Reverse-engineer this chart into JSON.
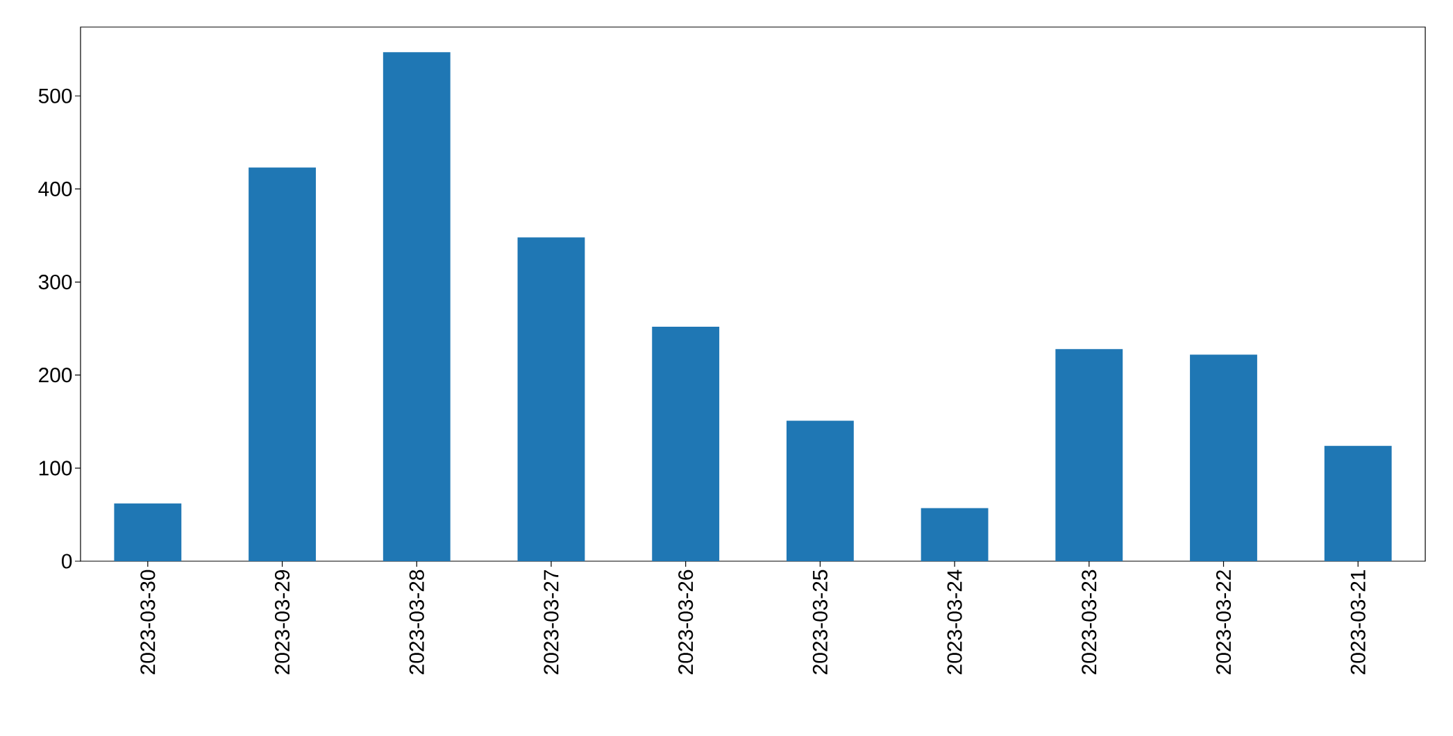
{
  "chart_data": {
    "type": "bar",
    "categories": [
      "2023-03-30",
      "2023-03-29",
      "2023-03-28",
      "2023-03-27",
      "2023-03-26",
      "2023-03-25",
      "2023-03-24",
      "2023-03-23",
      "2023-03-22",
      "2023-03-21"
    ],
    "values": [
      62,
      423,
      547,
      348,
      252,
      151,
      57,
      228,
      222,
      124
    ],
    "color": "#1f77b4",
    "ylim": [
      0,
      574
    ],
    "yticks": [
      0,
      100,
      200,
      300,
      400,
      500
    ]
  }
}
